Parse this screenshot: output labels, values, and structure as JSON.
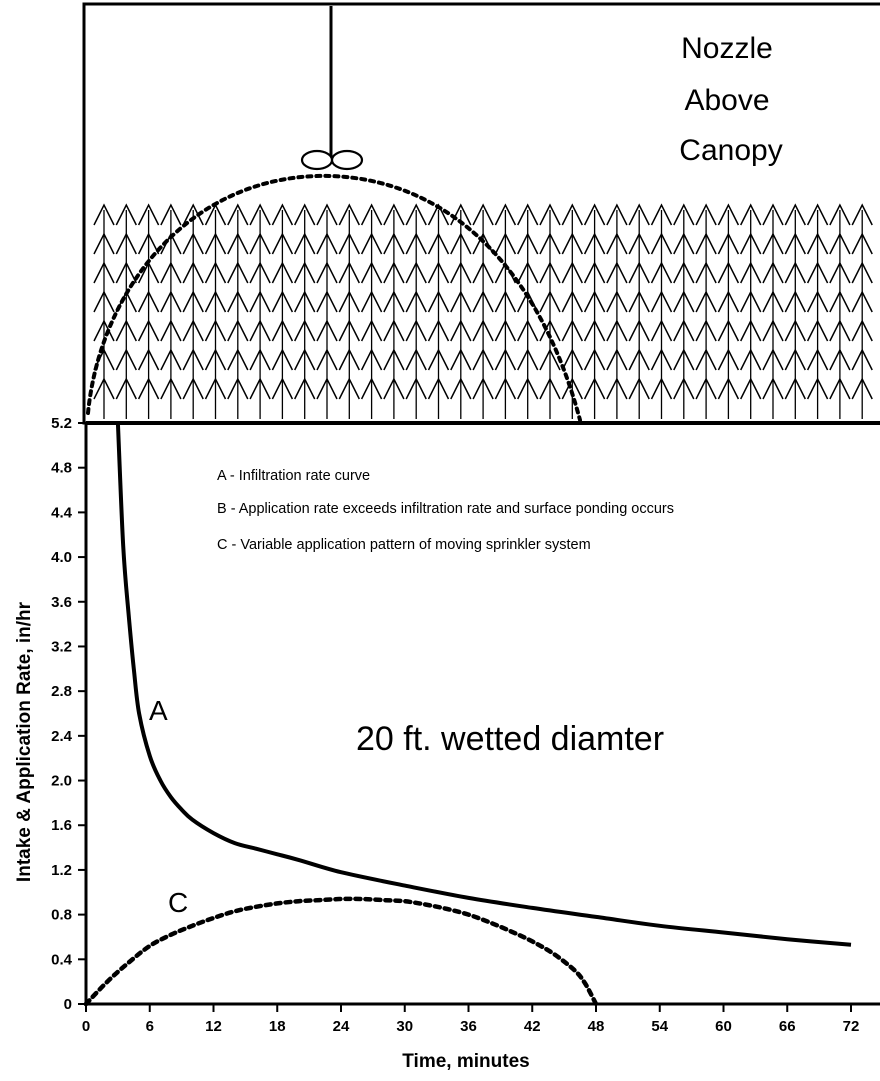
{
  "chart_data": {
    "type": "line",
    "title": "",
    "xlabel": "Time, minutes",
    "ylabel": "Intake & Application Rate, in/hr",
    "xlim": [
      0,
      72
    ],
    "ylim": [
      0,
      5.2
    ],
    "x_ticks": [
      "0",
      "6",
      "12",
      "18",
      "24",
      "30",
      "36",
      "42",
      "48",
      "54",
      "60",
      "66",
      "72"
    ],
    "y_ticks": [
      "0",
      "0.4",
      "0.8",
      "1.2",
      "1.6",
      "2.0",
      "2.4",
      "2.8",
      "3.2",
      "3.6",
      "4.0",
      "4.4",
      "4.8",
      "5.2"
    ],
    "grid": false,
    "legend": {
      "placement": "top-left",
      "entries": [
        "A - Infiltration rate curve",
        "B - Application rate exceeds infiltration rate and surface ponding occurs",
        "C - Variable application pattern of moving sprinkler system"
      ]
    },
    "annotations": {
      "nozzle_line1": "Nozzle",
      "nozzle_line2": "Above",
      "nozzle_line3": "Canopy",
      "wetted": "20 ft. wetted diamter"
    },
    "series": [
      {
        "name": "A",
        "style": "solid",
        "x": [
          3,
          3.5,
          4,
          4.5,
          5,
          6,
          7,
          8,
          9,
          10,
          12,
          14,
          16,
          18,
          20,
          24,
          30,
          36,
          42,
          48,
          54,
          60,
          66,
          72
        ],
        "y": [
          5.2,
          4.1,
          3.5,
          3.0,
          2.6,
          2.22,
          2.0,
          1.85,
          1.74,
          1.65,
          1.53,
          1.44,
          1.39,
          1.34,
          1.29,
          1.18,
          1.06,
          0.95,
          0.86,
          0.78,
          0.7,
          0.64,
          0.58,
          0.53
        ]
      },
      {
        "name": "C",
        "style": "dashed",
        "x": [
          0,
          2,
          4,
          6,
          8,
          10,
          12,
          14,
          16,
          18,
          20,
          22,
          24,
          26,
          28,
          30,
          32,
          34,
          36,
          38,
          40,
          42,
          44,
          46,
          47,
          48
        ],
        "y": [
          0.0,
          0.2,
          0.37,
          0.52,
          0.62,
          0.7,
          0.77,
          0.83,
          0.87,
          0.9,
          0.92,
          0.93,
          0.94,
          0.94,
          0.93,
          0.92,
          0.89,
          0.85,
          0.8,
          0.73,
          0.65,
          0.56,
          0.45,
          0.3,
          0.18,
          0.0
        ]
      }
    ]
  },
  "colors": {
    "ink": "#000000",
    "background": "#ffffff"
  }
}
